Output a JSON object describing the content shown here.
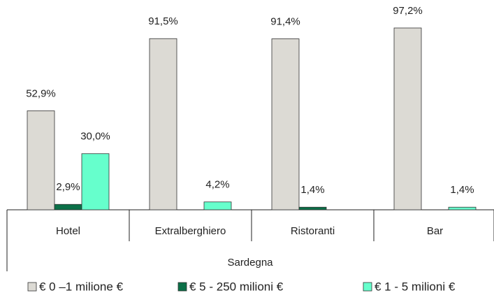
{
  "chart_data": {
    "type": "bar",
    "categories": [
      "Hotel",
      "Extralberghiero",
      "Ristoranti",
      "Bar"
    ],
    "group_label": "Sardegna",
    "series": [
      {
        "name": "€ 0 –1 milione €",
        "color": "#dcdad4",
        "values": [
          52.9,
          91.5,
          91.4,
          97.2
        ],
        "value_labels": [
          "52,9%",
          "91,5%",
          "91,4%",
          "97,2%"
        ]
      },
      {
        "name": "€ 5 - 250 milioni €",
        "color": "#0b7048",
        "values": [
          2.9,
          null,
          1.4,
          null
        ],
        "value_labels": [
          "2,9%",
          null,
          "1,4%",
          null
        ]
      },
      {
        "name": "€ 1 - 5 milioni €",
        "color": "#66ffcc",
        "values": [
          30.0,
          4.2,
          null,
          1.4
        ],
        "value_labels": [
          "30,0%",
          "4,2%",
          null,
          "1,4%"
        ]
      }
    ]
  }
}
